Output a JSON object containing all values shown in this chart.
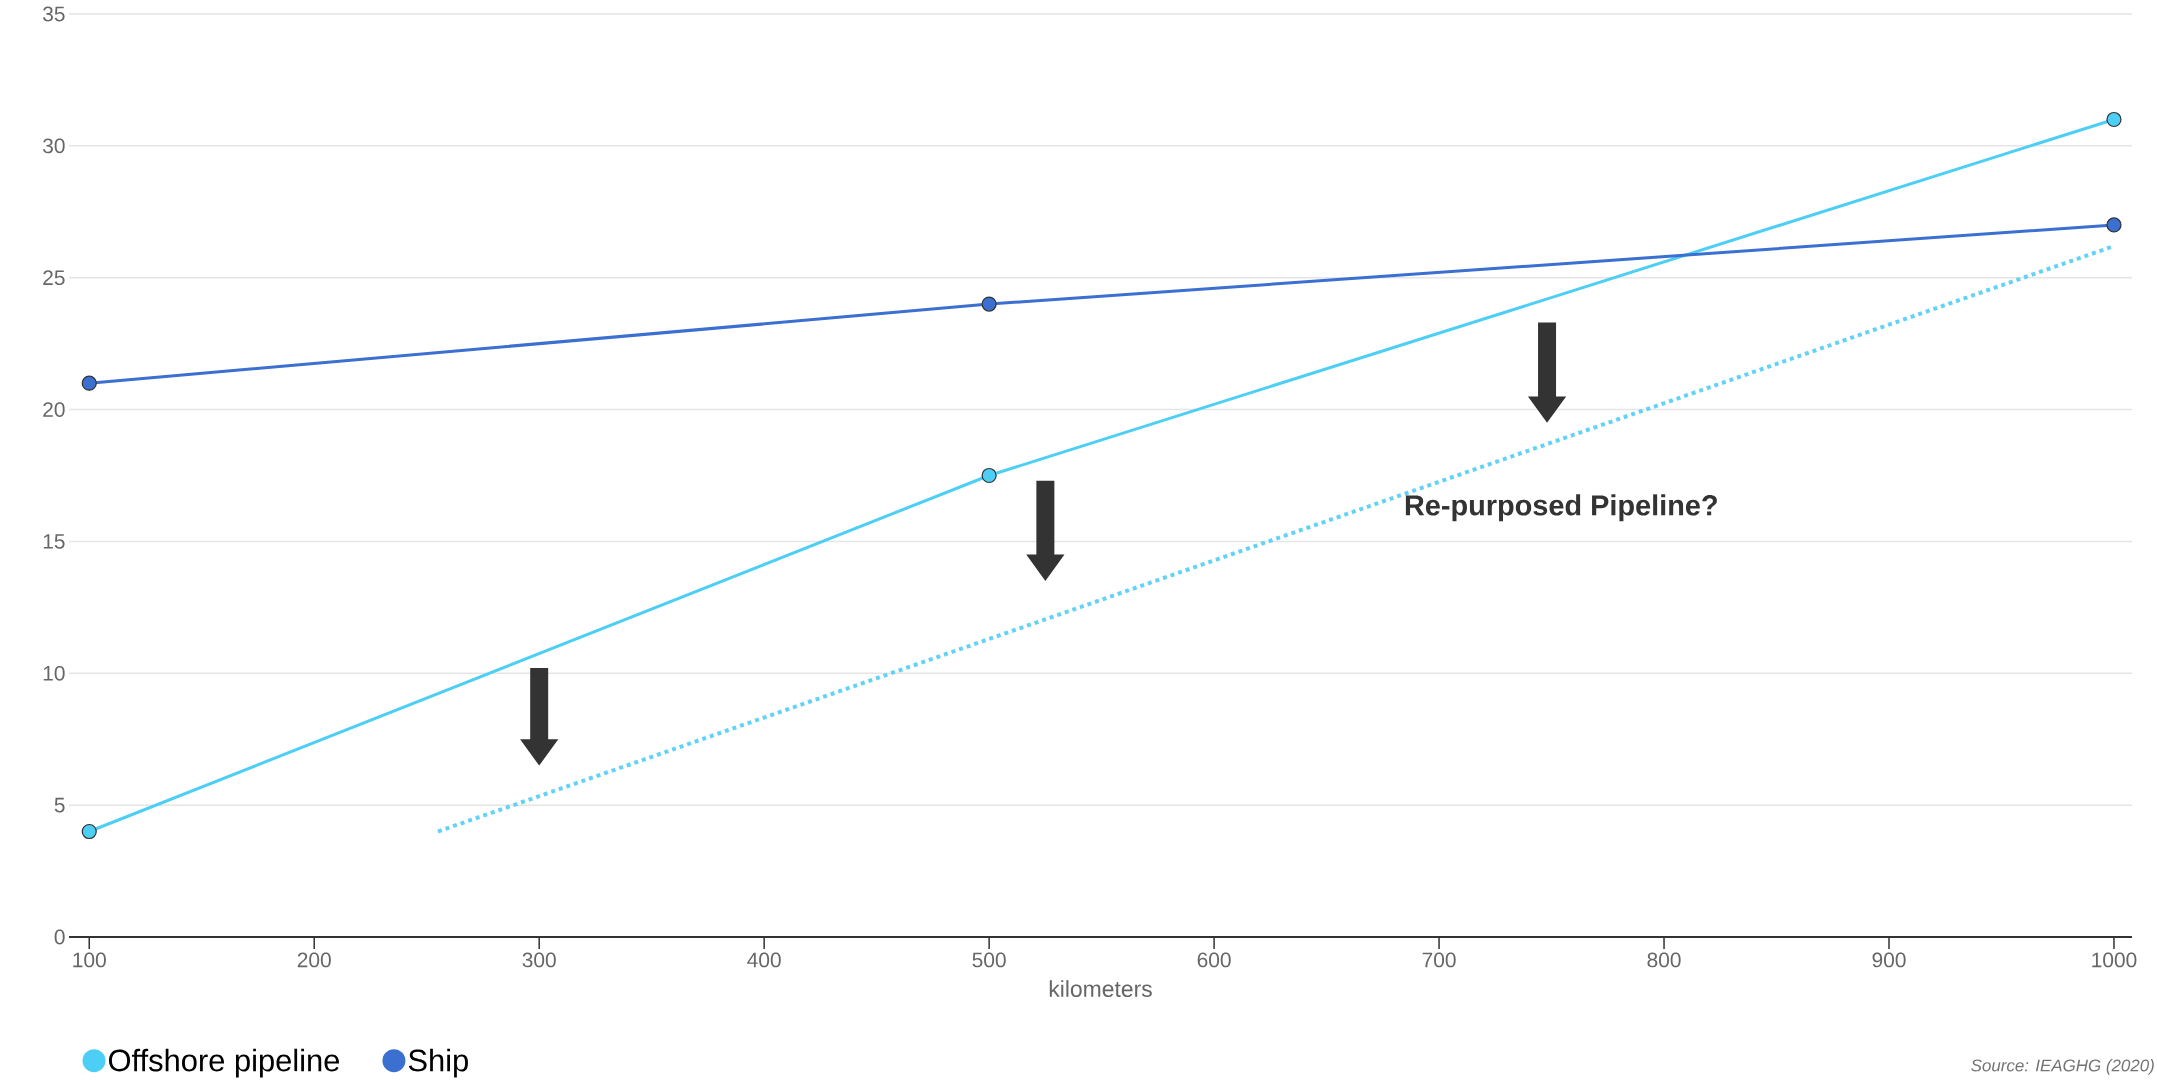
{
  "chart_data": {
    "type": "line",
    "xlabel": "kilometers",
    "xlim": [
      91,
      1008
    ],
    "xticks": [
      100,
      200,
      300,
      400,
      500,
      600,
      700,
      800,
      900,
      1000
    ],
    "ylim": [
      0,
      35
    ],
    "yticks": [
      0,
      5,
      10,
      15,
      20,
      25,
      30,
      35
    ],
    "grid": "y",
    "legend": "bottom left",
    "marker": "circle",
    "series": [
      {
        "name": "Offshore pipeline",
        "color": "#4dcff5",
        "x": [
          100,
          500,
          1000
        ],
        "values": [
          4,
          17.5,
          31
        ]
      },
      {
        "name": "Ship",
        "color": "#3b6fd0",
        "x": [
          100,
          500,
          1000
        ],
        "values": [
          21,
          24,
          27
        ]
      },
      {
        "color": "#62d3f7",
        "x": [
          255,
          1000
        ],
        "values": [
          4,
          26.2
        ],
        "line_style": "dotted",
        "marker": "none"
      }
    ],
    "annotations": [
      "**Re-purposed Pipeline?**",
      "*Source: IEAGHG (2020)*"
    ]
  }
}
